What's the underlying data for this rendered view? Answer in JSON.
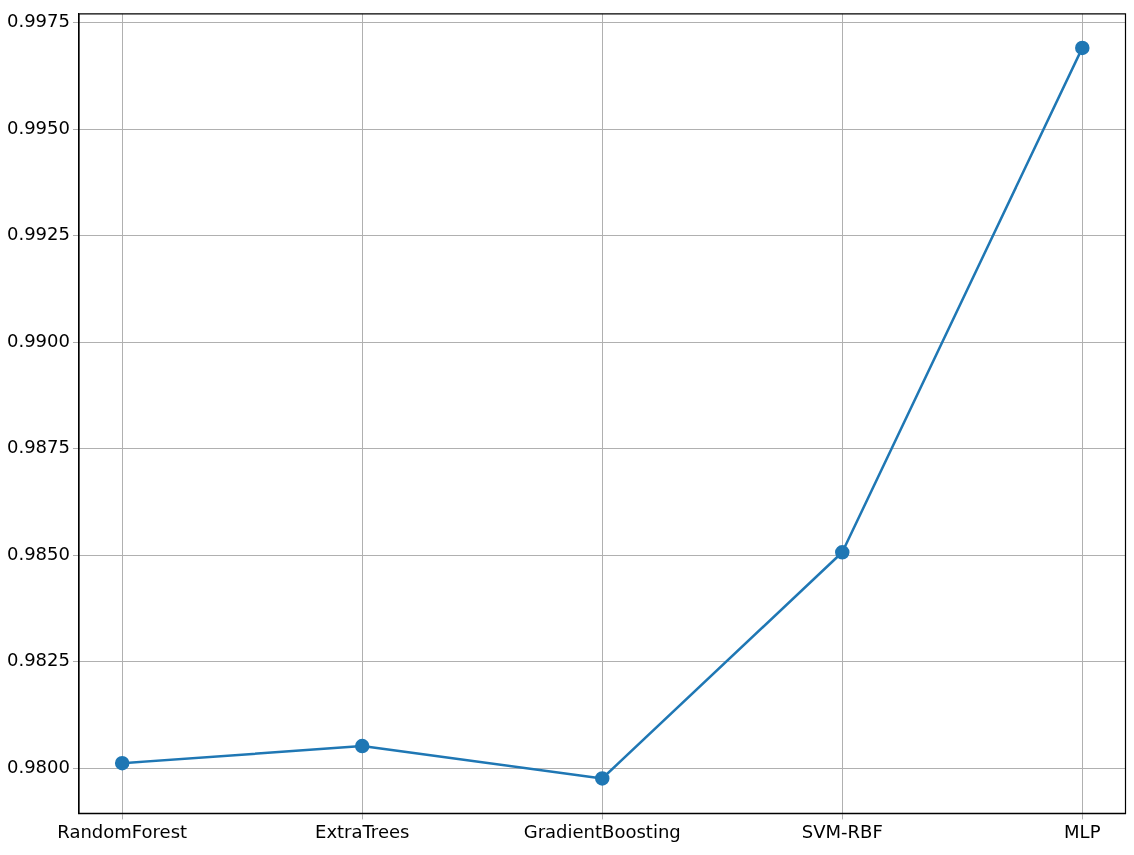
{
  "chart_data": {
    "type": "line",
    "categories": [
      "RandomForest",
      "ExtraTrees",
      "GradientBoosting",
      "SVM-RBF",
      "MLP"
    ],
    "series": [
      {
        "color": "#1f77b4",
        "values": [
          0.98012,
          0.98052,
          0.97976,
          0.98507,
          0.99691
        ]
      }
    ],
    "ylim": [
      0.97894,
      0.99771
    ],
    "yticks": [
      {
        "value": 0.98,
        "label": "0.9800"
      },
      {
        "value": 0.9825,
        "label": "0.9825"
      },
      {
        "value": 0.985,
        "label": "0.9850"
      },
      {
        "value": 0.9875,
        "label": "0.9875"
      },
      {
        "value": 0.99,
        "label": "0.9900"
      },
      {
        "value": 0.9925,
        "label": "0.9925"
      },
      {
        "value": 0.995,
        "label": "0.9950"
      },
      {
        "value": 0.9975,
        "label": "0.9975"
      }
    ],
    "grid": true,
    "marker": "circle",
    "line_style": "solid",
    "legend": false
  }
}
